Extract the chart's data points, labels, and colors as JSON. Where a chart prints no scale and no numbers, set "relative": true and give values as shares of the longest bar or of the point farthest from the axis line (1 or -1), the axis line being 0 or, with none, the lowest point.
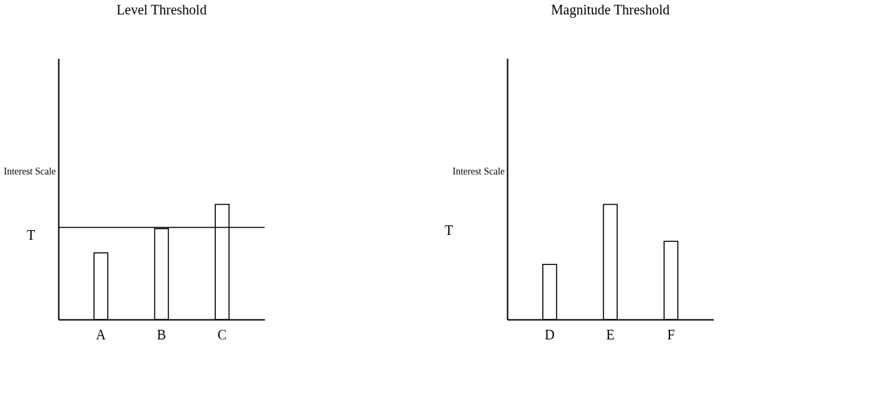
{
  "chart_data": [
    {
      "type": "bar",
      "title": "Level Threshold",
      "ylabel": "Interest Scale",
      "relative": true,
      "categories": [
        "A",
        "B",
        "C"
      ],
      "series": [
        {
          "color": "#ffffff",
          "values": [
            0.58,
            0.79,
            1
          ]
        }
      ],
      "ref_lines": [
        {
          "axis": "y",
          "value": 0.8,
          "label": "T",
          "color": "#000000"
        }
      ],
      "grid": false
    },
    {
      "type": "bar",
      "title": "Magnitude Threshold",
      "ylabel": "Interest Scale",
      "relative": true,
      "categories": [
        "D",
        "E",
        "F"
      ],
      "series": [
        {
          "color": "#ffffff",
          "values": [
            0.48,
            1,
            0.68
          ]
        }
      ],
      "annotations": [
        "T"
      ],
      "grid": false
    }
  ]
}
